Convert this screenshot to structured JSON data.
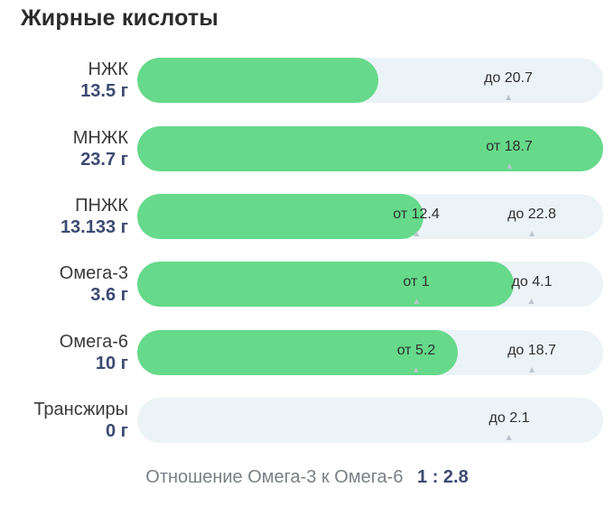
{
  "title": "Жирные кислоты",
  "colors": {
    "fill": "#66d98a",
    "track": "#ebf3f7",
    "amount": "#3c4a72"
  },
  "rows": [
    {
      "name": "НЖК",
      "amount": "13.5 г",
      "value": 13.5,
      "markers": [
        {
          "label": "до 20.7",
          "value": 20.7
        }
      ]
    },
    {
      "name": "МНЖК",
      "amount": "23.7 г",
      "value": 23.7,
      "markers": [
        {
          "label": "от 18.7",
          "value": 18.7
        }
      ]
    },
    {
      "name": "ПНЖК",
      "amount": "13.133 г",
      "value": 13.133,
      "markers": [
        {
          "label": "от 12.4",
          "value": 12.4
        },
        {
          "label": "до 22.8",
          "value": 22.8
        }
      ]
    },
    {
      "name": "Омега-3",
      "amount": "3.6 г",
      "value": 3.6,
      "markers": [
        {
          "label": "от 1",
          "value": 1
        },
        {
          "label": "до 4.1",
          "value": 4.1
        }
      ]
    },
    {
      "name": "Омега-6",
      "amount": "10 г",
      "value": 10,
      "markers": [
        {
          "label": "от 5.2",
          "value": 5.2
        },
        {
          "label": "до 18.7",
          "value": 18.7
        }
      ]
    },
    {
      "name": "Трансжиры",
      "amount": "0 г",
      "value": 0,
      "markers": [
        {
          "label": "до 2.1",
          "value": 2.1
        }
      ]
    }
  ],
  "ratio": {
    "label": "Отношение Омега-3 к Омега-6",
    "value": "1 : 2.8"
  }
}
